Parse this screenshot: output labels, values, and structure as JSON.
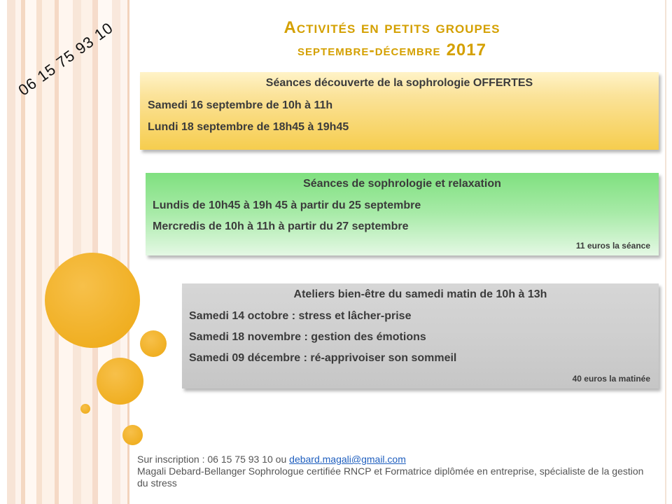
{
  "phone_vertical": "06 15 75 93 10",
  "title": {
    "line1": "Activités en petits groupes",
    "line2": "septembre-décembre",
    "year": "2017"
  },
  "box1": {
    "heading": "Séances découverte de la sophrologie OFFERTES",
    "lines": [
      "Samedi 16 septembre de 10h à 11h",
      "Lundi 18 septembre de 18h45 à 19h45"
    ]
  },
  "box2": {
    "heading": "Séances de sophrologie et relaxation",
    "lines": [
      "Lundis de 10h45 à 19h 45 à partir du 25 septembre",
      "Mercredis de 10h à 11h à partir du 27 septembre"
    ],
    "price": "11 euros la séance"
  },
  "box3": {
    "heading": "Ateliers bien-être du samedi matin de 10h à 13h",
    "lines": [
      "Samedi 14 octobre : stress et lâcher-prise",
      "Samedi 18 novembre : gestion des émotions",
      "Samedi 09 décembre : ré-apprivoiser son sommeil"
    ],
    "price": "40 euros la matinée"
  },
  "footer": {
    "inscription_prefix": "Sur inscription : 06 15 75 93 10 ou ",
    "email": "debard.magali@gmail.com",
    "credit": "Magali Debard-Bellanger Sophrologue certifiée RNCP et Formatrice diplômée en entreprise, spécialiste de la gestion du stress"
  },
  "colors": {
    "title": "#d4a000",
    "circles": "#eda812",
    "box1": "#f6cd4e",
    "box2": "#7fe07f",
    "box3": "#cfcfcf",
    "link": "#1f5fbf"
  }
}
